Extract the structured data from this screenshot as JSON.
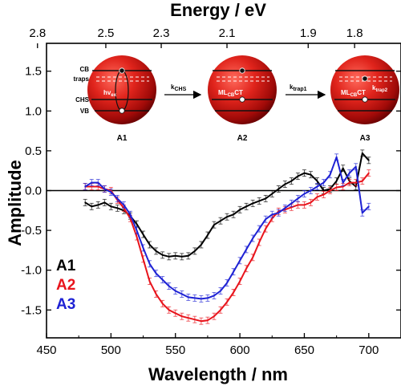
{
  "chart_data": {
    "type": "line",
    "xlabel": "Wavelength / nm",
    "x2label": "Energy / eV",
    "ylabel": "Amplitude",
    "xlim": [
      450,
      725
    ],
    "ylim": [
      -1.85,
      1.85
    ],
    "grid": false,
    "legend_placement": "bottom-left",
    "x_ticks": [
      "450",
      "500",
      "550",
      "600",
      "650",
      "700"
    ],
    "x_tick_values": [
      450,
      500,
      550,
      600,
      650,
      700
    ],
    "y_ticks": [
      "1.5",
      "1.0",
      "0.5",
      "0.0",
      "-0.5",
      "-1.0",
      "-1.5"
    ],
    "y_tick_values": [
      1.5,
      1.0,
      0.5,
      0.0,
      -0.5,
      -1.0,
      -1.5
    ],
    "top_ticks": [
      "2.8",
      "2.5",
      "2.3",
      "2.1",
      "1.9",
      "1.8"
    ],
    "top_tick_wavelengths": [
      443,
      496,
      539,
      590,
      653,
      689
    ],
    "series": [
      {
        "name": "A1",
        "color": "#000000",
        "x": [
          480,
          485,
          490,
          495,
          500,
          505,
          510,
          515,
          520,
          525,
          530,
          535,
          540,
          545,
          550,
          555,
          560,
          565,
          570,
          575,
          580,
          585,
          590,
          595,
          600,
          605,
          610,
          615,
          620,
          625,
          630,
          635,
          640,
          645,
          650,
          655,
          660,
          665,
          670,
          675,
          680,
          685,
          690,
          695,
          700
        ],
        "values": [
          -0.15,
          -0.2,
          -0.18,
          -0.15,
          -0.2,
          -0.22,
          -0.25,
          -0.32,
          -0.42,
          -0.55,
          -0.68,
          -0.76,
          -0.81,
          -0.83,
          -0.82,
          -0.83,
          -0.82,
          -0.76,
          -0.68,
          -0.56,
          -0.43,
          -0.38,
          -0.33,
          -0.3,
          -0.24,
          -0.2,
          -0.16,
          -0.13,
          -0.1,
          -0.04,
          0.02,
          0.08,
          0.12,
          0.18,
          0.22,
          0.2,
          0.12,
          0.0,
          0.02,
          0.12,
          0.28,
          0.12,
          0.05,
          0.47,
          0.38
        ]
      },
      {
        "name": "A2",
        "color": "#e8141c",
        "x": [
          480,
          485,
          490,
          495,
          500,
          505,
          510,
          515,
          520,
          525,
          530,
          535,
          540,
          545,
          550,
          555,
          560,
          565,
          570,
          575,
          580,
          585,
          590,
          595,
          600,
          605,
          610,
          615,
          620,
          625,
          630,
          635,
          640,
          645,
          650,
          655,
          660,
          665,
          670,
          675,
          680,
          685,
          690,
          695,
          700
        ],
        "values": [
          0.05,
          0.05,
          0.05,
          0.02,
          0.0,
          -0.12,
          -0.22,
          -0.35,
          -0.58,
          -0.86,
          -1.14,
          -1.3,
          -1.42,
          -1.5,
          -1.54,
          -1.58,
          -1.6,
          -1.62,
          -1.64,
          -1.63,
          -1.58,
          -1.5,
          -1.4,
          -1.28,
          -1.14,
          -0.98,
          -0.84,
          -0.65,
          -0.48,
          -0.35,
          -0.26,
          -0.24,
          -0.21,
          -0.18,
          -0.18,
          -0.15,
          -0.08,
          -0.05,
          0.0,
          0.04,
          0.05,
          0.1,
          0.1,
          0.12,
          0.22
        ]
      },
      {
        "name": "A3",
        "color": "#1e22d4",
        "x": [
          480,
          485,
          490,
          495,
          500,
          505,
          510,
          515,
          520,
          525,
          530,
          535,
          540,
          545,
          550,
          555,
          560,
          565,
          570,
          575,
          580,
          585,
          590,
          595,
          600,
          605,
          610,
          615,
          620,
          625,
          630,
          635,
          640,
          645,
          650,
          655,
          660,
          665,
          670,
          675,
          680,
          685,
          690,
          695,
          700
        ],
        "values": [
          0.05,
          0.1,
          0.1,
          0.02,
          -0.02,
          -0.1,
          -0.18,
          -0.3,
          -0.5,
          -0.72,
          -0.92,
          -1.04,
          -1.12,
          -1.2,
          -1.26,
          -1.3,
          -1.34,
          -1.35,
          -1.36,
          -1.35,
          -1.32,
          -1.26,
          -1.16,
          -1.02,
          -0.88,
          -0.74,
          -0.6,
          -0.48,
          -0.36,
          -0.3,
          -0.28,
          -0.22,
          -0.16,
          -0.1,
          -0.04,
          0.0,
          0.05,
          0.1,
          0.2,
          0.42,
          0.1,
          0.22,
          0.3,
          -0.28,
          -0.2
        ]
      }
    ],
    "inset": {
      "states": [
        "A1",
        "A2",
        "A3"
      ],
      "arrow1": {
        "main": "k",
        "sub": "CHS"
      },
      "arrow2": {
        "main": "k",
        "sub": "trap1"
      },
      "level_labels": [
        "CB",
        "traps",
        "CHS",
        "VB"
      ],
      "excite_label": "hv",
      "excite_sub": "ex",
      "mlct_main": "ML",
      "mlct_sub": "CB",
      "mlct_tail": "CT",
      "k_trap2_main": "k",
      "k_trap2_sub": "trap2"
    }
  }
}
